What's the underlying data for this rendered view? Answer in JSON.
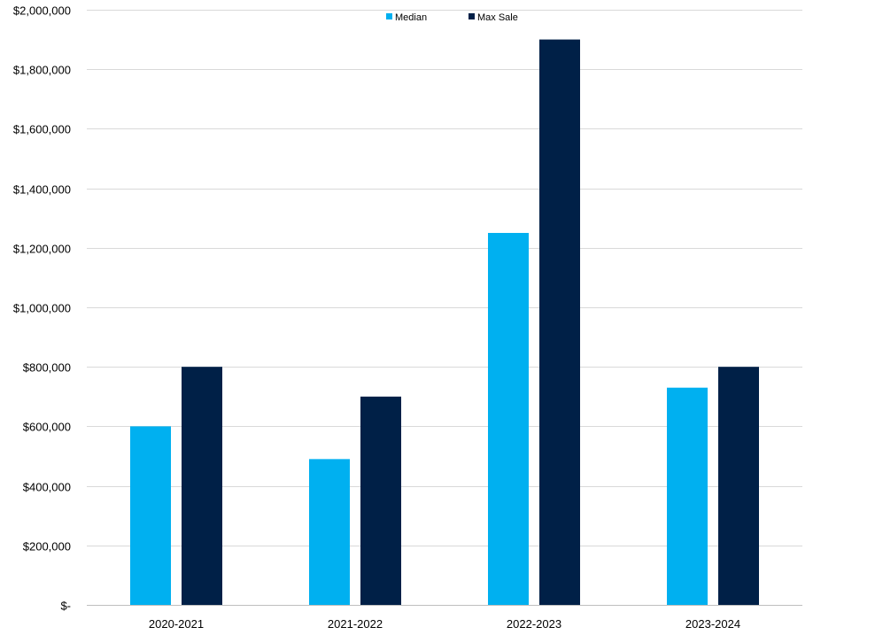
{
  "chart_data": {
    "type": "bar",
    "categories": [
      "2020-2021",
      "2021-2022",
      "2022-2023",
      "2023-2024"
    ],
    "series": [
      {
        "name": "Median",
        "values": [
          600000,
          490000,
          1250000,
          730000
        ],
        "color": "#00B0F0"
      },
      {
        "name": "Max Sale",
        "values": [
          800000,
          700000,
          1900000,
          800000
        ],
        "color": "#002047"
      }
    ],
    "ylim": [
      0,
      2000000
    ],
    "yticks": [
      0,
      200000,
      400000,
      600000,
      800000,
      1000000,
      1200000,
      1400000,
      1600000,
      1800000,
      2000000
    ],
    "ytick_labels": [
      "$-",
      "$200,000",
      "$400,000",
      "$600,000",
      "$800,000",
      "$1,000,000",
      "$1,200,000",
      "$1,400,000",
      "$1,600,000",
      "$1,800,000",
      "$2,000,000"
    ],
    "grid": true,
    "gridline_color": "#D9D9D9",
    "axis_color": "#BFBFBF",
    "legend_position": "top-center",
    "title": "",
    "xlabel": "",
    "ylabel": ""
  }
}
